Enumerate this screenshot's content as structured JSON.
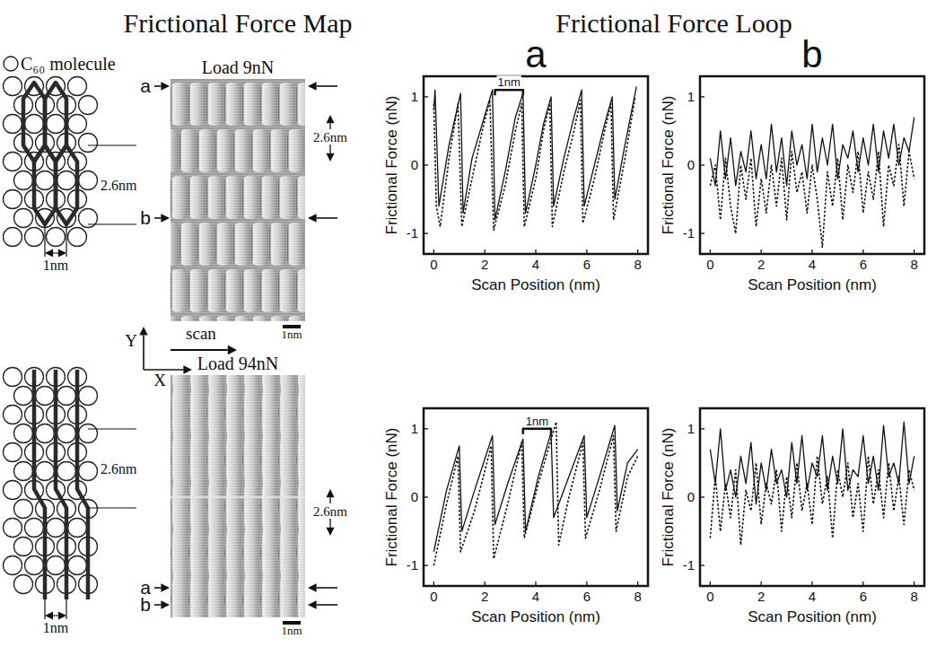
{
  "figure": {
    "headings": [
      "Frictional Force Map",
      "Frictional Force Loop"
    ],
    "molecule_label": "C₆₀ molecule",
    "scan_label": "scan",
    "x_axis_label": "X",
    "y_axis_label": "Y",
    "panels": [
      {
        "load": "Load 9nN",
        "schematic_period": "2.6nm",
        "schematic_spacing": "1nm",
        "image_period": "2.6nm",
        "scale_bar": "1nm",
        "markers": [
          "a",
          "b"
        ]
      },
      {
        "load": "Load 94nN",
        "schematic_period": "2.6nm",
        "schematic_spacing": "1nm",
        "image_period": "2.6nm",
        "scale_bar": "1nm",
        "markers": [
          "a",
          "b"
        ]
      }
    ]
  },
  "chart_data": [
    {
      "type": "line",
      "title": "a",
      "x_label": "Scan Position (nm)",
      "y_label": "Frictional Force (nN)",
      "xlim": [
        -0.4,
        8.4
      ],
      "ylim": [
        -1.3,
        1.3
      ],
      "xticks": [
        0,
        2,
        4,
        6,
        8
      ],
      "yticks": [
        -1,
        0,
        1
      ],
      "annotations": [
        {
          "text": "1nm",
          "x": [
            2.4,
            3.5
          ],
          "y": 1.1
        }
      ],
      "series": [
        {
          "color": "#111111",
          "line_style": "solid",
          "x": [
            0,
            0.05,
            0.2,
            0.6,
            1.05,
            1.15,
            1.5,
            1.9,
            2.3,
            2.4,
            2.8,
            3.2,
            3.5,
            3.6,
            4.0,
            4.3,
            4.6,
            4.7,
            5.1,
            5.5,
            5.8,
            5.9,
            6.3,
            6.7,
            7.0,
            7.1,
            7.5,
            7.95
          ],
          "values": [
            0.8,
            1.1,
            -0.6,
            0.3,
            1.05,
            -0.7,
            0.1,
            0.6,
            1.1,
            -0.8,
            -0.1,
            0.7,
            1.05,
            -0.7,
            0.0,
            0.6,
            1.0,
            -0.6,
            0.1,
            0.7,
            1.1,
            -0.6,
            0.0,
            0.6,
            1.0,
            -0.5,
            0.3,
            1.15
          ]
        },
        {
          "color": "#111111",
          "line_style": "dotted",
          "x": [
            0,
            0.1,
            0.25,
            0.6,
            0.95,
            1.1,
            1.5,
            1.9,
            2.2,
            2.35,
            2.8,
            3.2,
            3.45,
            3.55,
            4.0,
            4.3,
            4.55,
            4.65,
            5.1,
            5.5,
            5.75,
            5.85,
            6.3,
            6.7,
            6.95,
            7.05,
            7.5,
            7.9
          ],
          "values": [
            0.9,
            -0.6,
            -0.9,
            0.1,
            0.9,
            -0.9,
            -0.2,
            0.5,
            0.95,
            -0.95,
            -0.3,
            0.5,
            0.9,
            -0.9,
            -0.2,
            0.5,
            0.9,
            -0.9,
            -0.1,
            0.5,
            0.95,
            -0.85,
            -0.2,
            0.5,
            0.9,
            -0.8,
            0.1,
            1.0
          ]
        }
      ]
    },
    {
      "type": "line",
      "title": "b",
      "x_label": "Scan Position (nm)",
      "y_label": "Frictional Force (nN)",
      "xlim": [
        -0.4,
        8.4
      ],
      "ylim": [
        -1.3,
        1.3
      ],
      "xticks": [
        0,
        2,
        4,
        6,
        8
      ],
      "yticks": [
        -1,
        0,
        1
      ],
      "series": [
        {
          "color": "#111111",
          "line_style": "solid",
          "x": [
            0,
            0.2,
            0.4,
            0.6,
            0.8,
            1.0,
            1.2,
            1.4,
            1.6,
            1.8,
            2.0,
            2.2,
            2.4,
            2.6,
            2.8,
            3.0,
            3.2,
            3.4,
            3.6,
            3.8,
            4.0,
            4.2,
            4.4,
            4.6,
            4.8,
            5.0,
            5.2,
            5.4,
            5.6,
            5.8,
            6.0,
            6.2,
            6.4,
            6.6,
            6.8,
            7.0,
            7.2,
            7.4,
            7.6,
            7.8,
            8.0
          ],
          "values": [
            0.1,
            -0.3,
            0.5,
            -0.2,
            0.4,
            -0.3,
            0.2,
            -0.1,
            0.5,
            -0.2,
            0.3,
            -0.2,
            0.6,
            -0.1,
            0.4,
            -0.3,
            0.5,
            0.0,
            0.3,
            -0.2,
            0.6,
            -0.1,
            0.4,
            0.0,
            0.6,
            -0.2,
            0.3,
            0.1,
            0.5,
            -0.1,
            0.4,
            0.0,
            0.6,
            -0.1,
            0.5,
            0.1,
            0.6,
            0.0,
            0.4,
            0.2,
            0.7
          ]
        },
        {
          "color": "#111111",
          "line_style": "dotted",
          "x": [
            0,
            0.2,
            0.4,
            0.6,
            0.8,
            1.0,
            1.2,
            1.4,
            1.6,
            1.8,
            2.0,
            2.2,
            2.4,
            2.6,
            2.8,
            3.0,
            3.2,
            3.4,
            3.6,
            3.8,
            4.0,
            4.2,
            4.4,
            4.6,
            4.8,
            5.0,
            5.2,
            5.4,
            5.6,
            5.8,
            6.0,
            6.2,
            6.4,
            6.6,
            6.8,
            7.0,
            7.2,
            7.4,
            7.6,
            7.8,
            8.0
          ],
          "values": [
            -0.3,
            0.0,
            -0.8,
            0.1,
            -0.6,
            -1.0,
            0.0,
            -0.5,
            0.1,
            -0.9,
            -0.2,
            -0.7,
            0.0,
            -0.6,
            0.1,
            -0.8,
            0.2,
            -0.4,
            -0.1,
            -0.7,
            0.0,
            -0.5,
            -1.2,
            -0.1,
            -0.6,
            0.1,
            -0.8,
            0.0,
            -0.4,
            0.2,
            -0.7,
            -0.1,
            -0.5,
            0.2,
            -0.9,
            0.0,
            -0.3,
            0.3,
            -0.6,
            0.2,
            -0.2
          ]
        }
      ]
    },
    {
      "type": "line",
      "x_label": "Scan Position (nm)",
      "y_label": "Frictional Force (nN)",
      "xlim": [
        -0.4,
        8.4
      ],
      "ylim": [
        -1.3,
        1.3
      ],
      "xticks": [
        0,
        2,
        4,
        6,
        8
      ],
      "yticks": [
        -1,
        0,
        1
      ],
      "annotations": [
        {
          "text": "1nm",
          "x": [
            3.5,
            4.6
          ],
          "y": 1.0
        }
      ],
      "series": [
        {
          "color": "#111111",
          "line_style": "solid",
          "x": [
            0,
            0.5,
            1.0,
            1.1,
            1.6,
            2.3,
            2.4,
            2.9,
            3.5,
            3.6,
            4.1,
            4.6,
            4.7,
            5.2,
            5.9,
            6.0,
            6.5,
            7.1,
            7.2,
            7.6,
            8.0
          ],
          "values": [
            -0.8,
            0.1,
            0.75,
            -0.5,
            0.1,
            0.9,
            -0.4,
            0.2,
            0.85,
            -0.5,
            0.3,
            0.95,
            -0.3,
            0.2,
            0.9,
            -0.3,
            0.3,
            1.05,
            -0.2,
            0.5,
            0.7
          ]
        },
        {
          "color": "#111111",
          "line_style": "dotted",
          "x": [
            0,
            0.5,
            0.95,
            1.05,
            1.6,
            2.25,
            2.35,
            2.9,
            3.45,
            3.55,
            4.1,
            4.8,
            4.9,
            5.3,
            5.85,
            5.95,
            6.5,
            7.05,
            7.15,
            7.6,
            8.0
          ],
          "values": [
            -1.0,
            -0.1,
            0.6,
            -0.8,
            -0.2,
            0.75,
            -0.9,
            -0.1,
            0.8,
            -0.6,
            0.2,
            1.1,
            -0.7,
            0.0,
            0.8,
            -0.6,
            0.1,
            0.9,
            -0.5,
            0.3,
            0.6
          ]
        }
      ]
    },
    {
      "type": "line",
      "x_label": "Scan Position (nm)",
      "y_label": "Frictional Force (nN)",
      "xlim": [
        -0.4,
        8.4
      ],
      "ylim": [
        -1.3,
        1.3
      ],
      "xticks": [
        0,
        2,
        4,
        6,
        8
      ],
      "yticks": [
        -1,
        0,
        1
      ],
      "series": [
        {
          "color": "#111111",
          "line_style": "solid",
          "x": [
            0,
            0.2,
            0.4,
            0.6,
            0.8,
            1.0,
            1.2,
            1.4,
            1.6,
            1.8,
            2.0,
            2.2,
            2.4,
            2.6,
            2.8,
            3.0,
            3.2,
            3.4,
            3.6,
            3.8,
            4.0,
            4.2,
            4.4,
            4.6,
            4.8,
            5.0,
            5.2,
            5.4,
            5.6,
            5.8,
            6.0,
            6.2,
            6.4,
            6.6,
            6.8,
            7.0,
            7.2,
            7.4,
            7.6,
            7.8,
            8.0
          ],
          "values": [
            0.7,
            0.2,
            1.0,
            0.1,
            0.4,
            0.0,
            0.6,
            0.2,
            0.8,
            -0.1,
            0.5,
            0.1,
            0.7,
            0.2,
            0.4,
            0.0,
            0.8,
            0.2,
            0.9,
            0.1,
            0.5,
            0.3,
            0.9,
            0.1,
            0.6,
            0.2,
            1.0,
            0.1,
            0.4,
            0.3,
            0.9,
            0.2,
            0.6,
            0.1,
            1.05,
            0.3,
            0.5,
            0.2,
            1.1,
            0.2,
            0.6
          ]
        },
        {
          "color": "#111111",
          "line_style": "dotted",
          "x": [
            0,
            0.2,
            0.4,
            0.6,
            0.8,
            1.0,
            1.2,
            1.4,
            1.6,
            1.8,
            2.0,
            2.2,
            2.4,
            2.6,
            2.8,
            3.0,
            3.2,
            3.4,
            3.6,
            3.8,
            4.0,
            4.2,
            4.4,
            4.6,
            4.8,
            5.0,
            5.2,
            5.4,
            5.6,
            5.8,
            6.0,
            6.2,
            6.4,
            6.6,
            6.8,
            7.0,
            7.2,
            7.4,
            7.6,
            7.8,
            8.0
          ],
          "values": [
            -0.6,
            0.3,
            -0.5,
            0.2,
            -0.3,
            0.4,
            -0.7,
            0.1,
            -0.2,
            0.5,
            -0.4,
            0.2,
            -0.1,
            0.4,
            -0.5,
            0.3,
            -0.3,
            0.5,
            -0.2,
            0.2,
            -0.4,
            0.6,
            -0.1,
            0.3,
            -0.6,
            0.4,
            0.0,
            0.5,
            -0.3,
            0.2,
            -0.5,
            0.6,
            -0.1,
            0.4,
            -0.3,
            0.5,
            -0.2,
            0.3,
            -0.4,
            0.4,
            0.1
          ]
        }
      ]
    }
  ]
}
